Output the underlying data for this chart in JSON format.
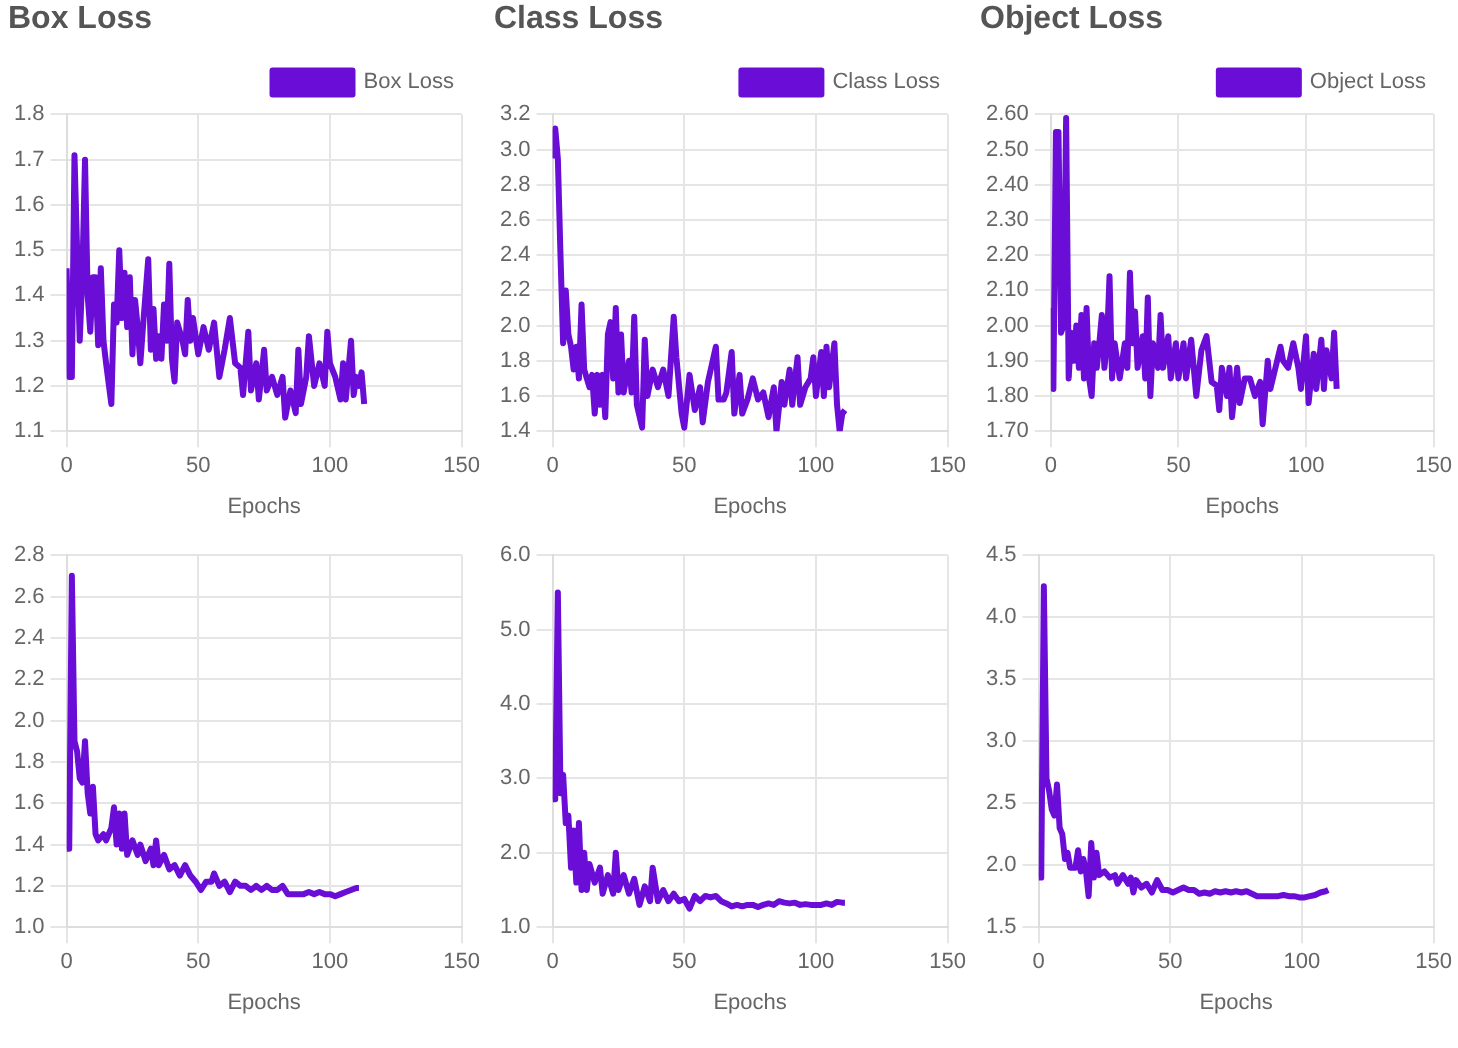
{
  "chart_data": [
    {
      "type": "line",
      "title": "Box Loss",
      "xlabel": "Epochs",
      "legend": "top right",
      "grid": true,
      "xlim": [
        0,
        150
      ],
      "xticks": [
        0,
        50,
        100,
        150
      ],
      "ylim": [
        1.1,
        1.8
      ],
      "yticks": [
        1.1,
        1.2,
        1.3,
        1.4,
        1.5,
        1.6,
        1.7,
        1.8
      ],
      "x": [
        0,
        1,
        2,
        3,
        4,
        5,
        6,
        7,
        8,
        9,
        10,
        11,
        12,
        13,
        14,
        15,
        17,
        18,
        19,
        20,
        21,
        22,
        23,
        24,
        25,
        26,
        27,
        28,
        29,
        31,
        32,
        33,
        34,
        35,
        36,
        37,
        38,
        39,
        40,
        41,
        42,
        44,
        45,
        46,
        47,
        48,
        50,
        52,
        54,
        56,
        58,
        60,
        62,
        64,
        66,
        67,
        69,
        70,
        72,
        73,
        75,
        76,
        78,
        80,
        82,
        83,
        85,
        87,
        88,
        89,
        91,
        92,
        94,
        96,
        98,
        99,
        100,
        102,
        104,
        105,
        106,
        108,
        109,
        110,
        111,
        112,
        113
      ],
      "series": [
        {
          "name": "Box Loss",
          "color": "#6a0dd6",
          "values": [
            1.46,
            1.22,
            1.22,
            1.71,
            1.5,
            1.3,
            1.45,
            1.7,
            1.4,
            1.32,
            1.44,
            1.44,
            1.29,
            1.46,
            1.3,
            1.25,
            1.16,
            1.38,
            1.34,
            1.5,
            1.35,
            1.45,
            1.33,
            1.44,
            1.27,
            1.39,
            1.33,
            1.25,
            1.33,
            1.48,
            1.28,
            1.37,
            1.26,
            1.31,
            1.26,
            1.38,
            1.3,
            1.47,
            1.26,
            1.21,
            1.34,
            1.3,
            1.27,
            1.39,
            1.3,
            1.35,
            1.27,
            1.33,
            1.28,
            1.34,
            1.22,
            1.28,
            1.35,
            1.25,
            1.24,
            1.18,
            1.32,
            1.19,
            1.25,
            1.17,
            1.28,
            1.19,
            1.22,
            1.18,
            1.22,
            1.13,
            1.19,
            1.14,
            1.28,
            1.16,
            1.22,
            1.31,
            1.2,
            1.25,
            1.2,
            1.32,
            1.25,
            1.22,
            1.17,
            1.25,
            1.17,
            1.3,
            1.18,
            1.22,
            1.2,
            1.23,
            1.16
          ]
        }
      ]
    },
    {
      "type": "line",
      "title": "Class Loss",
      "xlabel": "Epochs",
      "legend": "top right",
      "grid": true,
      "xlim": [
        0,
        150
      ],
      "xticks": [
        0,
        50,
        100,
        150
      ],
      "ylim": [
        1.4,
        3.2
      ],
      "yticks": [
        1.4,
        1.6,
        1.8,
        {
          "value": 2,
          "label": "2.0"
        },
        2.2,
        2.4,
        2.6,
        2.8,
        {
          "value": 3,
          "label": "3.0"
        },
        3.2
      ],
      "x": [
        0,
        1,
        2,
        3,
        4,
        5,
        6,
        7,
        8,
        9,
        10,
        11,
        12,
        14,
        15,
        16,
        17,
        18,
        19,
        20,
        21,
        22,
        23,
        24,
        25,
        26,
        27,
        29,
        30,
        31,
        32,
        34,
        35,
        36,
        38,
        40,
        42,
        44,
        46,
        47,
        49,
        50,
        52,
        54,
        56,
        57,
        59,
        62,
        63,
        65,
        66,
        68,
        69,
        71,
        72,
        74,
        76,
        78,
        80,
        82,
        84,
        85,
        87,
        88,
        90,
        91,
        93,
        94,
        96,
        98,
        99,
        100,
        102,
        103,
        104,
        105,
        107,
        108,
        109,
        110,
        111
      ],
      "series": [
        {
          "name": "Class Loss",
          "color": "#6a0dd6",
          "values": [
            2.95,
            3.12,
            2.95,
            2.4,
            1.9,
            2.2,
            1.95,
            1.88,
            1.75,
            1.88,
            1.7,
            2.12,
            1.75,
            1.65,
            1.72,
            1.5,
            1.72,
            1.55,
            1.72,
            1.48,
            1.95,
            2.02,
            1.7,
            2.1,
            1.62,
            1.95,
            1.62,
            1.8,
            1.62,
            2.05,
            1.55,
            1.42,
            1.92,
            1.6,
            1.75,
            1.65,
            1.75,
            1.6,
            2.05,
            1.82,
            1.5,
            1.42,
            1.72,
            1.52,
            1.65,
            1.45,
            1.68,
            1.88,
            1.58,
            1.58,
            1.62,
            1.85,
            1.5,
            1.72,
            1.5,
            1.58,
            1.7,
            1.58,
            1.62,
            1.48,
            1.65,
            1.4,
            1.68,
            1.55,
            1.75,
            1.55,
            1.82,
            1.55,
            1.65,
            1.7,
            1.82,
            1.6,
            1.85,
            1.6,
            1.88,
            1.65,
            1.9,
            1.55,
            1.4,
            1.5,
            1.52
          ]
        }
      ]
    },
    {
      "type": "line",
      "title": "Object Loss",
      "xlabel": "Epochs",
      "legend": "top right",
      "grid": true,
      "xlim": [
        0,
        150
      ],
      "xticks": [
        0,
        50,
        100,
        150
      ],
      "ylim": [
        1.7,
        2.6
      ],
      "yticks": [
        {
          "value": 1.7,
          "label": "1.70"
        },
        {
          "value": 1.8,
          "label": "1.80"
        },
        {
          "value": 1.9,
          "label": "1.90"
        },
        {
          "value": 2,
          "label": "2.00"
        },
        {
          "value": 2.1,
          "label": "2.10"
        },
        {
          "value": 2.2,
          "label": "2.20"
        },
        {
          "value": 2.3,
          "label": "2.30"
        },
        {
          "value": 2.4,
          "label": "2.40"
        },
        {
          "value": 2.5,
          "label": "2.50"
        },
        {
          "value": 2.6,
          "label": "2.60"
        }
      ],
      "x": [
        0,
        1,
        2,
        3,
        4,
        5,
        6,
        7,
        8,
        9,
        10,
        11,
        12,
        13,
        14,
        15,
        16,
        17,
        18,
        19,
        20,
        21,
        22,
        23,
        24,
        25,
        27,
        29,
        30,
        31,
        32,
        33,
        34,
        36,
        37,
        38,
        39,
        40,
        42,
        43,
        44,
        46,
        47,
        49,
        50,
        52,
        53,
        55,
        57,
        59,
        61,
        63,
        65,
        66,
        67,
        69,
        70,
        71,
        73,
        74,
        76,
        78,
        80,
        82,
        83,
        85,
        86,
        88,
        90,
        91,
        93,
        95,
        97,
        98,
        100,
        101,
        103,
        104,
        106,
        107,
        108,
        110,
        111,
        112
      ],
      "series": [
        {
          "name": "Object Loss",
          "color": "#6a0dd6",
          "values": [
            2.05,
            1.82,
            2.55,
            2.55,
            1.98,
            2.0,
            2.59,
            1.85,
            1.98,
            1.9,
            2.0,
            1.88,
            2.03,
            1.85,
            2.05,
            1.85,
            1.8,
            1.95,
            1.88,
            1.95,
            2.03,
            1.88,
            1.95,
            2.14,
            1.85,
            1.95,
            1.85,
            1.95,
            1.88,
            2.15,
            1.95,
            2.04,
            1.88,
            1.97,
            1.85,
            2.08,
            1.8,
            1.95,
            1.88,
            2.03,
            1.88,
            1.97,
            1.85,
            1.95,
            1.85,
            1.95,
            1.85,
            1.96,
            1.8,
            1.93,
            1.97,
            1.84,
            1.83,
            1.76,
            1.88,
            1.8,
            1.88,
            1.74,
            1.88,
            1.78,
            1.85,
            1.85,
            1.8,
            1.84,
            1.72,
            1.9,
            1.82,
            1.88,
            1.94,
            1.9,
            1.88,
            1.95,
            1.88,
            1.82,
            1.97,
            1.78,
            1.92,
            1.82,
            1.96,
            1.82,
            1.93,
            1.85,
            1.98,
            1.82
          ]
        }
      ]
    },
    {
      "type": "line",
      "xlabel": "Epochs",
      "grid": true,
      "xlim": [
        0,
        150
      ],
      "xticks": [
        0,
        50,
        100,
        150
      ],
      "ylim": [
        1,
        2.8
      ],
      "yticks": [
        {
          "value": 1,
          "label": "1.0"
        },
        1.2,
        1.4,
        1.6,
        1.8,
        {
          "value": 2,
          "label": "2.0"
        },
        2.2,
        2.4,
        2.6,
        2.8
      ],
      "x": [
        0,
        1,
        2,
        3,
        4,
        5,
        6,
        7,
        8,
        9,
        10,
        11,
        12,
        14,
        15,
        17,
        18,
        19,
        20,
        21,
        22,
        23,
        25,
        27,
        28,
        30,
        32,
        33,
        34,
        35,
        37,
        39,
        41,
        43,
        45,
        47,
        49,
        51,
        53,
        55,
        56,
        58,
        60,
        62,
        64,
        66,
        68,
        70,
        72,
        74,
        76,
        78,
        80,
        82,
        84,
        86,
        88,
        90,
        92,
        94,
        96,
        98,
        100,
        102,
        104,
        106,
        108,
        110,
        111
      ],
      "series": [
        {
          "color": "#6a0dd6",
          "values": [
            1.38,
            1.38,
            2.7,
            1.9,
            1.85,
            1.72,
            1.7,
            1.9,
            1.65,
            1.55,
            1.68,
            1.45,
            1.42,
            1.45,
            1.42,
            1.48,
            1.58,
            1.4,
            1.55,
            1.38,
            1.55,
            1.35,
            1.42,
            1.35,
            1.4,
            1.32,
            1.38,
            1.3,
            1.42,
            1.3,
            1.35,
            1.28,
            1.3,
            1.25,
            1.3,
            1.25,
            1.22,
            1.18,
            1.22,
            1.22,
            1.26,
            1.2,
            1.22,
            1.17,
            1.22,
            1.2,
            1.2,
            1.18,
            1.2,
            1.18,
            1.2,
            1.18,
            1.18,
            1.2,
            1.16,
            1.16,
            1.16,
            1.16,
            1.17,
            1.16,
            1.17,
            1.16,
            1.16,
            1.15,
            1.16,
            1.17,
            1.18,
            1.19,
            1.19
          ]
        }
      ]
    },
    {
      "type": "line",
      "xlabel": "Epochs",
      "grid": true,
      "xlim": [
        0,
        150
      ],
      "xticks": [
        0,
        50,
        100,
        150
      ],
      "ylim": [
        1,
        6
      ],
      "yticks": [
        {
          "value": 1,
          "label": "1.0"
        },
        {
          "value": 2,
          "label": "2.0"
        },
        {
          "value": 3,
          "label": "3.0"
        },
        {
          "value": 4,
          "label": "4.0"
        },
        {
          "value": 5,
          "label": "5.0"
        },
        {
          "value": 6,
          "label": "6.0"
        }
      ],
      "x": [
        0,
        1,
        2,
        3,
        4,
        5,
        6,
        7,
        8,
        9,
        10,
        11,
        12,
        13,
        14,
        16,
        18,
        19,
        21,
        23,
        24,
        25,
        27,
        29,
        31,
        33,
        35,
        37,
        38,
        40,
        42,
        44,
        46,
        48,
        50,
        52,
        54,
        56,
        58,
        60,
        62,
        64,
        66,
        68,
        70,
        72,
        74,
        76,
        78,
        80,
        82,
        84,
        86,
        88,
        90,
        92,
        94,
        96,
        98,
        100,
        102,
        104,
        106,
        108,
        110,
        111
      ],
      "series": [
        {
          "color": "#6a0dd6",
          "values": [
            2.72,
            2.72,
            5.5,
            2.8,
            3.05,
            2.4,
            2.5,
            1.8,
            2.3,
            1.6,
            2.4,
            1.5,
            2.0,
            1.5,
            1.85,
            1.6,
            1.8,
            1.45,
            1.7,
            1.45,
            2.0,
            1.5,
            1.7,
            1.45,
            1.65,
            1.3,
            1.55,
            1.35,
            1.8,
            1.35,
            1.5,
            1.35,
            1.45,
            1.35,
            1.38,
            1.25,
            1.42,
            1.35,
            1.42,
            1.4,
            1.42,
            1.35,
            1.32,
            1.28,
            1.3,
            1.28,
            1.3,
            1.3,
            1.27,
            1.3,
            1.32,
            1.3,
            1.35,
            1.33,
            1.32,
            1.33,
            1.3,
            1.31,
            1.3,
            1.3,
            1.3,
            1.32,
            1.3,
            1.34,
            1.33,
            1.33
          ]
        }
      ]
    },
    {
      "type": "line",
      "xlabel": "Epochs",
      "grid": true,
      "xlim": [
        0,
        150
      ],
      "xticks": [
        0,
        50,
        100,
        150
      ],
      "ylim": [
        1.5,
        4.5
      ],
      "yticks": [
        1.5,
        {
          "value": 2,
          "label": "2.0"
        },
        2.5,
        {
          "value": 3,
          "label": "3.0"
        },
        3.5,
        {
          "value": 4,
          "label": "4.0"
        },
        4.5
      ],
      "x": [
        0,
        1,
        2,
        3,
        4,
        5,
        6,
        7,
        8,
        9,
        10,
        11,
        12,
        14,
        15,
        16,
        17,
        18,
        19,
        20,
        21,
        22,
        23,
        25,
        27,
        29,
        30,
        32,
        34,
        35,
        36,
        37,
        39,
        41,
        43,
        45,
        47,
        49,
        51,
        53,
        55,
        57,
        59,
        61,
        63,
        65,
        67,
        69,
        71,
        73,
        75,
        77,
        79,
        81,
        83,
        85,
        87,
        89,
        91,
        93,
        95,
        97,
        99,
        101,
        103,
        105,
        107,
        109,
        110
      ],
      "series": [
        {
          "color": "#6a0dd6",
          "values": [
            1.9,
            1.9,
            4.25,
            2.7,
            2.6,
            2.45,
            2.4,
            2.65,
            2.3,
            2.25,
            2.05,
            2.1,
            1.98,
            1.98,
            2.12,
            1.95,
            2.05,
            1.95,
            1.75,
            2.18,
            1.9,
            2.1,
            1.92,
            1.95,
            1.9,
            1.92,
            1.85,
            1.92,
            1.85,
            1.9,
            1.78,
            1.88,
            1.82,
            1.85,
            1.78,
            1.88,
            1.8,
            1.8,
            1.78,
            1.8,
            1.82,
            1.8,
            1.8,
            1.77,
            1.78,
            1.77,
            1.79,
            1.78,
            1.79,
            1.78,
            1.79,
            1.78,
            1.79,
            1.77,
            1.75,
            1.75,
            1.75,
            1.75,
            1.75,
            1.76,
            1.75,
            1.75,
            1.74,
            1.74,
            1.75,
            1.76,
            1.78,
            1.79,
            1.8
          ]
        }
      ]
    }
  ]
}
